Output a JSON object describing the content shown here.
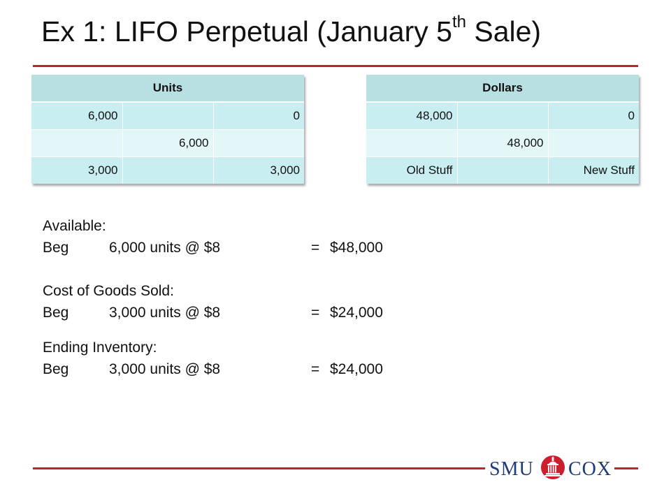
{
  "title": {
    "text": "Ex 1: LIFO Perpetual (January 5",
    "superscript": "th",
    "suffix": " Sale)"
  },
  "units_table": {
    "header": "Units",
    "rows": [
      [
        "6,000",
        "",
        "0"
      ],
      [
        "",
        "6,000",
        ""
      ],
      [
        "3,000",
        "",
        "3,000"
      ]
    ]
  },
  "dollars_table": {
    "header": "Dollars",
    "rows": [
      [
        "48,000",
        "",
        "0"
      ],
      [
        "",
        "48,000",
        ""
      ],
      [
        "Old Stuff",
        "",
        "New Stuff"
      ]
    ]
  },
  "available": {
    "heading": "Available:",
    "line": {
      "label": "Beg",
      "detail": "6,000 units @ $8",
      "eq": "=",
      "amount": "$48,000"
    }
  },
  "cogs": {
    "heading": "Cost of Goods Sold:",
    "line": {
      "label": "Beg",
      "detail": "3,000 units @ $8",
      "eq": "=",
      "amount": "$24,000"
    }
  },
  "ending": {
    "heading": "Ending Inventory:",
    "line": {
      "label": "Beg",
      "detail": "3,000 units @ $8",
      "eq": "=",
      "amount": "$24,000"
    }
  },
  "logo": {
    "left_text": "SMU",
    "right_text": "COX",
    "icon": "smu-building-seal-icon",
    "brand_color": "#cc1f2d",
    "text_color": "#1f3a7a"
  },
  "colors": {
    "accent_rule": "#cc1f2d",
    "table_header": "#b8dfe2",
    "table_row_dark": "#c8eef2",
    "table_row_light": "#e3f7f8"
  }
}
